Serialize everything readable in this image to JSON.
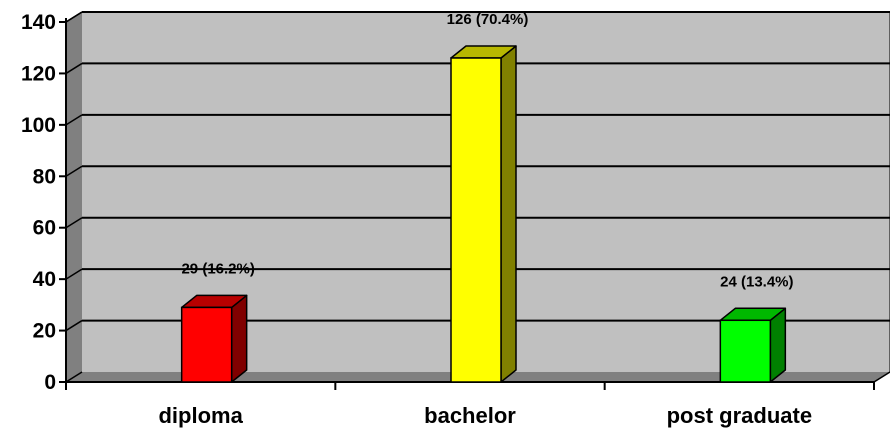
{
  "chart_data": {
    "type": "bar",
    "style": "3d-column",
    "categories": [
      "diploma",
      "bachelor",
      "post graduate"
    ],
    "values": [
      29,
      126,
      24
    ],
    "data_labels": [
      "29  (16.2%)",
      "126  (70.4%)",
      "24  (13.4%)"
    ],
    "colors": [
      "#ff0000",
      "#ffff00",
      "#00ff00"
    ],
    "title": "",
    "xlabel": "",
    "ylabel": "",
    "ylim": [
      0,
      140
    ],
    "yticks": [
      0,
      20,
      40,
      60,
      80,
      100,
      120,
      140
    ],
    "grid": true,
    "legend": "none",
    "plot_background": "#c0c0c0"
  }
}
